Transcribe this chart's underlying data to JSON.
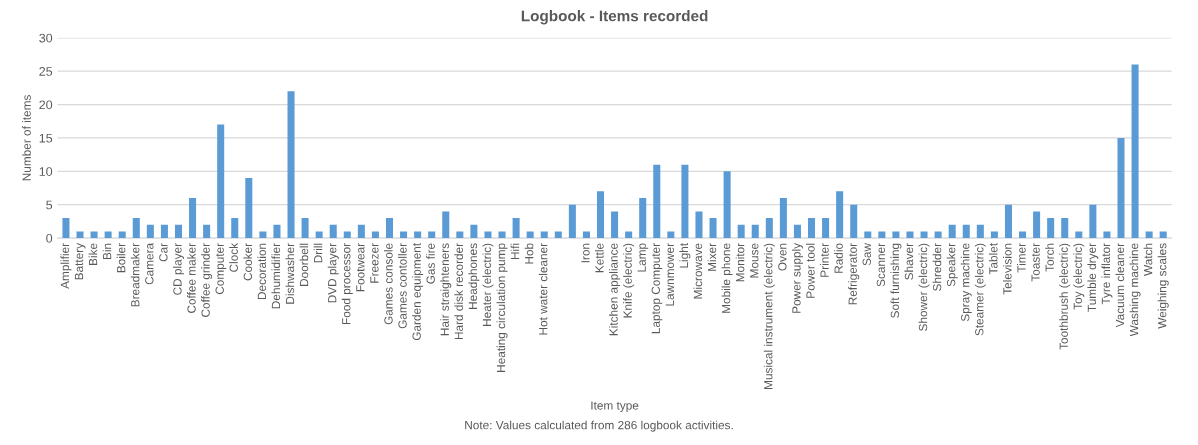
{
  "chart_data": {
    "type": "bar",
    "title": "Logbook - Items recorded",
    "xlabel": "Item type",
    "ylabel": "Number of items",
    "categories": [
      "Amplifier",
      "Battery",
      "Bike",
      "Bin",
      "Boiler",
      "Breadmaker",
      "Camera",
      "Car",
      "CD player",
      "Coffee maker",
      "Coffee grinder",
      "Computer",
      "Clock",
      "Cooker",
      "Decoration",
      "Dehumidifier",
      "Dishwasher",
      "Doorbell",
      "Drill",
      "DVD player",
      "Food processor",
      "Footwear",
      "Freezer",
      "Games console",
      "Games contoller",
      "Garden equipment",
      "Gas fire",
      "Hair straighteners",
      "Hard disk recorder",
      "Headphones",
      "Heater (electric)",
      "Heating circulation pump",
      "Hifi",
      "Hob",
      "Hot water cleaner",
      null,
      null,
      "Iron",
      "Kettle",
      "Kitchen appliance",
      "Knife (electric)",
      "Lamp",
      "Laptop Computer",
      "Lawnmower",
      "Light",
      "Microwave",
      "Mixer",
      "Mobile phone",
      "Monitor",
      "Mouse",
      "Musical instrument (electric)",
      "Oven",
      "Power supply",
      "Power tool",
      "Printer",
      "Radio",
      "Refrigerator",
      "Saw",
      "Scanner",
      "Soft furnishing",
      "Shaver",
      "Shower (electric)",
      "Shredder",
      "Speaker",
      "Spray machine",
      "Steamer (electric)",
      "Tablet",
      "Television",
      "Timer",
      "Toaster",
      "Torch",
      "Toothbrush (electric)",
      "Toy (electric)",
      "Tumble dryer",
      "Tyre inflator",
      "Vacuum cleaner",
      "Washing machine",
      "Watch",
      "Weighing scales"
    ],
    "values": [
      3,
      1,
      1,
      1,
      1,
      3,
      2,
      2,
      2,
      6,
      2,
      17,
      3,
      9,
      1,
      2,
      22,
      3,
      1,
      2,
      1,
      2,
      1,
      3,
      1,
      1,
      1,
      4,
      1,
      2,
      1,
      1,
      3,
      1,
      1,
      1,
      5,
      1,
      7,
      4,
      1,
      6,
      11,
      1,
      11,
      4,
      3,
      10,
      2,
      2,
      3,
      6,
      2,
      3,
      3,
      7,
      5,
      1,
      1,
      1,
      1,
      1,
      1,
      2,
      2,
      2,
      1,
      5,
      1,
      4,
      3,
      3,
      1,
      5,
      1,
      15,
      26,
      1,
      1
    ],
    "color": "#5b9bd5",
    "ylim": [
      0,
      30
    ],
    "yticks": [
      0,
      5,
      10,
      15,
      20,
      25,
      30
    ],
    "grid": "y",
    "annotations": [
      "Note: Values calculated from 286 logbook activities."
    ]
  }
}
